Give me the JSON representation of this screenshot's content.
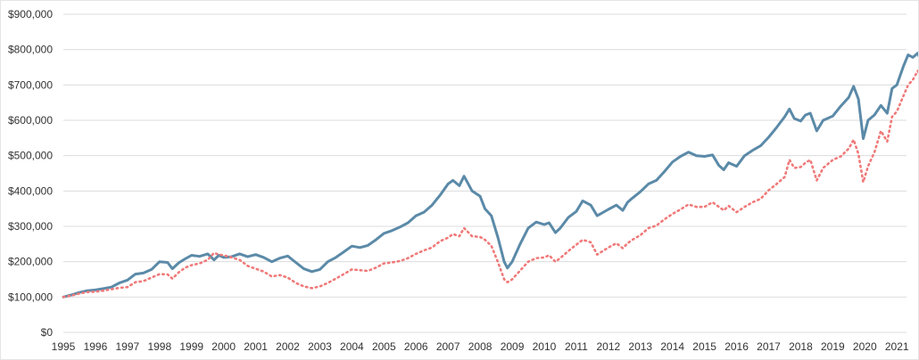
{
  "chart_data": {
    "type": "line",
    "title": "",
    "xlabel": "",
    "ylabel": "",
    "xlim": [
      1995,
      2021.3
    ],
    "ylim": [
      0,
      900000
    ],
    "grid": true,
    "legend": "none",
    "x_ticks": [
      1995,
      1996,
      1997,
      1998,
      1999,
      2000,
      2001,
      2002,
      2003,
      2004,
      2005,
      2006,
      2007,
      2008,
      2009,
      2010,
      2011,
      2012,
      2013,
      2014,
      2015,
      2016,
      2017,
      2018,
      2019,
      2020,
      2021
    ],
    "x_tick_labels": [
      "1995",
      "1996",
      "1997",
      "1998",
      "1999",
      "2000",
      "2001",
      "2002",
      "2003",
      "2004",
      "2005",
      "2006",
      "2007",
      "2008",
      "2009",
      "2010",
      "2011",
      "2012",
      "2013",
      "2014",
      "2015",
      "2016",
      "2017",
      "2018",
      "2019",
      "2020",
      "2021"
    ],
    "y_ticks": [
      0,
      100000,
      200000,
      300000,
      400000,
      500000,
      600000,
      700000,
      800000,
      900000
    ],
    "y_tick_labels": [
      "$0",
      "$100,000",
      "$200,000",
      "$300,000",
      "$400,000",
      "$500,000",
      "$600,000",
      "$700,000",
      "$800,000",
      "$900,000"
    ],
    "series": [
      {
        "color": "#5b8aa8",
        "style": "solid",
        "points": [
          [
            1995.0,
            100000
          ],
          [
            1995.25,
            106000
          ],
          [
            1995.5,
            113000
          ],
          [
            1995.75,
            118000
          ],
          [
            1996.0,
            120000
          ],
          [
            1996.25,
            124000
          ],
          [
            1996.5,
            128000
          ],
          [
            1996.75,
            140000
          ],
          [
            1997.0,
            148000
          ],
          [
            1997.25,
            165000
          ],
          [
            1997.5,
            168000
          ],
          [
            1997.75,
            178000
          ],
          [
            1998.0,
            200000
          ],
          [
            1998.25,
            198000
          ],
          [
            1998.4,
            180000
          ],
          [
            1998.6,
            197000
          ],
          [
            1998.8,
            208000
          ],
          [
            1999.0,
            218000
          ],
          [
            1999.25,
            215000
          ],
          [
            1999.5,
            222000
          ],
          [
            1999.7,
            205000
          ],
          [
            1999.85,
            218000
          ],
          [
            2000.0,
            212000
          ],
          [
            2000.25,
            214000
          ],
          [
            2000.5,
            222000
          ],
          [
            2000.75,
            214000
          ],
          [
            2001.0,
            220000
          ],
          [
            2001.25,
            212000
          ],
          [
            2001.5,
            200000
          ],
          [
            2001.75,
            210000
          ],
          [
            2002.0,
            216000
          ],
          [
            2002.25,
            198000
          ],
          [
            2002.5,
            180000
          ],
          [
            2002.75,
            172000
          ],
          [
            2003.0,
            178000
          ],
          [
            2003.25,
            200000
          ],
          [
            2003.5,
            212000
          ],
          [
            2003.75,
            228000
          ],
          [
            2004.0,
            244000
          ],
          [
            2004.25,
            240000
          ],
          [
            2004.5,
            246000
          ],
          [
            2004.75,
            262000
          ],
          [
            2005.0,
            280000
          ],
          [
            2005.25,
            288000
          ],
          [
            2005.5,
            298000
          ],
          [
            2005.75,
            310000
          ],
          [
            2006.0,
            330000
          ],
          [
            2006.25,
            340000
          ],
          [
            2006.5,
            360000
          ],
          [
            2006.75,
            388000
          ],
          [
            2007.0,
            420000
          ],
          [
            2007.15,
            430000
          ],
          [
            2007.35,
            415000
          ],
          [
            2007.5,
            442000
          ],
          [
            2007.75,
            400000
          ],
          [
            2008.0,
            385000
          ],
          [
            2008.15,
            350000
          ],
          [
            2008.35,
            330000
          ],
          [
            2008.55,
            270000
          ],
          [
            2008.75,
            200000
          ],
          [
            2008.85,
            182000
          ],
          [
            2009.0,
            200000
          ],
          [
            2009.25,
            250000
          ],
          [
            2009.5,
            295000
          ],
          [
            2009.75,
            312000
          ],
          [
            2010.0,
            305000
          ],
          [
            2010.15,
            310000
          ],
          [
            2010.35,
            282000
          ],
          [
            2010.5,
            295000
          ],
          [
            2010.75,
            325000
          ],
          [
            2011.0,
            342000
          ],
          [
            2011.2,
            372000
          ],
          [
            2011.45,
            360000
          ],
          [
            2011.65,
            330000
          ],
          [
            2011.75,
            335000
          ],
          [
            2012.0,
            348000
          ],
          [
            2012.25,
            360000
          ],
          [
            2012.45,
            345000
          ],
          [
            2012.6,
            368000
          ],
          [
            2012.75,
            380000
          ],
          [
            2013.0,
            398000
          ],
          [
            2013.25,
            420000
          ],
          [
            2013.5,
            430000
          ],
          [
            2013.75,
            455000
          ],
          [
            2014.0,
            482000
          ],
          [
            2014.25,
            498000
          ],
          [
            2014.5,
            510000
          ],
          [
            2014.75,
            500000
          ],
          [
            2015.0,
            498000
          ],
          [
            2015.25,
            502000
          ],
          [
            2015.45,
            472000
          ],
          [
            2015.6,
            460000
          ],
          [
            2015.75,
            480000
          ],
          [
            2016.0,
            470000
          ],
          [
            2016.25,
            500000
          ],
          [
            2016.5,
            515000
          ],
          [
            2016.75,
            528000
          ],
          [
            2017.0,
            552000
          ],
          [
            2017.25,
            580000
          ],
          [
            2017.5,
            610000
          ],
          [
            2017.65,
            632000
          ],
          [
            2017.8,
            605000
          ],
          [
            2018.0,
            598000
          ],
          [
            2018.15,
            615000
          ],
          [
            2018.3,
            620000
          ],
          [
            2018.5,
            570000
          ],
          [
            2018.7,
            600000
          ],
          [
            2019.0,
            612000
          ],
          [
            2019.25,
            640000
          ],
          [
            2019.5,
            665000
          ],
          [
            2019.65,
            696000
          ],
          [
            2019.8,
            660000
          ],
          [
            2019.95,
            548000
          ],
          [
            2020.1,
            600000
          ],
          [
            2020.3,
            615000
          ],
          [
            2020.5,
            642000
          ],
          [
            2020.7,
            620000
          ],
          [
            2020.85,
            690000
          ],
          [
            2021.0,
            700000
          ],
          [
            2021.2,
            752000
          ],
          [
            2021.35,
            785000
          ],
          [
            2021.5,
            778000
          ],
          [
            2021.65,
            790000
          ],
          [
            2021.75,
            768000
          ]
        ]
      },
      {
        "color": "#f07a7a",
        "style": "dotted",
        "points": [
          [
            1995.0,
            100000
          ],
          [
            1995.25,
            104000
          ],
          [
            1995.5,
            110000
          ],
          [
            1995.75,
            114000
          ],
          [
            1996.0,
            115000
          ],
          [
            1996.25,
            118000
          ],
          [
            1996.5,
            122000
          ],
          [
            1996.75,
            126000
          ],
          [
            1997.0,
            128000
          ],
          [
            1997.25,
            142000
          ],
          [
            1997.5,
            145000
          ],
          [
            1997.75,
            155000
          ],
          [
            1998.0,
            165000
          ],
          [
            1998.25,
            164000
          ],
          [
            1998.4,
            152000
          ],
          [
            1998.6,
            170000
          ],
          [
            1998.8,
            183000
          ],
          [
            1999.0,
            190000
          ],
          [
            1999.25,
            195000
          ],
          [
            1999.5,
            205000
          ],
          [
            1999.7,
            225000
          ],
          [
            1999.85,
            220000
          ],
          [
            2000.0,
            218000
          ],
          [
            2000.25,
            212000
          ],
          [
            2000.5,
            205000
          ],
          [
            2000.75,
            188000
          ],
          [
            2001.0,
            180000
          ],
          [
            2001.25,
            172000
          ],
          [
            2001.5,
            158000
          ],
          [
            2001.75,
            162000
          ],
          [
            2002.0,
            155000
          ],
          [
            2002.25,
            140000
          ],
          [
            2002.5,
            130000
          ],
          [
            2002.75,
            125000
          ],
          [
            2003.0,
            130000
          ],
          [
            2003.25,
            140000
          ],
          [
            2003.5,
            152000
          ],
          [
            2003.75,
            165000
          ],
          [
            2004.0,
            178000
          ],
          [
            2004.25,
            176000
          ],
          [
            2004.5,
            174000
          ],
          [
            2004.75,
            183000
          ],
          [
            2005.0,
            195000
          ],
          [
            2005.25,
            198000
          ],
          [
            2005.5,
            202000
          ],
          [
            2005.75,
            210000
          ],
          [
            2006.0,
            222000
          ],
          [
            2006.25,
            232000
          ],
          [
            2006.5,
            240000
          ],
          [
            2006.75,
            258000
          ],
          [
            2007.0,
            268000
          ],
          [
            2007.15,
            278000
          ],
          [
            2007.35,
            272000
          ],
          [
            2007.5,
            295000
          ],
          [
            2007.75,
            272000
          ],
          [
            2008.0,
            270000
          ],
          [
            2008.15,
            262000
          ],
          [
            2008.35,
            245000
          ],
          [
            2008.55,
            200000
          ],
          [
            2008.75,
            150000
          ],
          [
            2008.85,
            142000
          ],
          [
            2009.0,
            150000
          ],
          [
            2009.25,
            175000
          ],
          [
            2009.5,
            200000
          ],
          [
            2009.75,
            210000
          ],
          [
            2010.0,
            212000
          ],
          [
            2010.15,
            218000
          ],
          [
            2010.35,
            200000
          ],
          [
            2010.5,
            210000
          ],
          [
            2010.75,
            230000
          ],
          [
            2011.0,
            248000
          ],
          [
            2011.2,
            262000
          ],
          [
            2011.45,
            255000
          ],
          [
            2011.65,
            220000
          ],
          [
            2011.75,
            226000
          ],
          [
            2012.0,
            240000
          ],
          [
            2012.25,
            252000
          ],
          [
            2012.45,
            238000
          ],
          [
            2012.6,
            252000
          ],
          [
            2012.75,
            262000
          ],
          [
            2013.0,
            275000
          ],
          [
            2013.25,
            295000
          ],
          [
            2013.5,
            302000
          ],
          [
            2013.75,
            320000
          ],
          [
            2014.0,
            335000
          ],
          [
            2014.25,
            348000
          ],
          [
            2014.5,
            362000
          ],
          [
            2014.75,
            355000
          ],
          [
            2015.0,
            355000
          ],
          [
            2015.25,
            368000
          ],
          [
            2015.45,
            355000
          ],
          [
            2015.6,
            345000
          ],
          [
            2015.75,
            358000
          ],
          [
            2016.0,
            340000
          ],
          [
            2016.25,
            355000
          ],
          [
            2016.5,
            368000
          ],
          [
            2016.75,
            378000
          ],
          [
            2017.0,
            402000
          ],
          [
            2017.25,
            420000
          ],
          [
            2017.5,
            440000
          ],
          [
            2017.65,
            488000
          ],
          [
            2017.8,
            465000
          ],
          [
            2018.0,
            468000
          ],
          [
            2018.15,
            480000
          ],
          [
            2018.3,
            488000
          ],
          [
            2018.5,
            430000
          ],
          [
            2018.7,
            465000
          ],
          [
            2019.0,
            488000
          ],
          [
            2019.25,
            498000
          ],
          [
            2019.5,
            520000
          ],
          [
            2019.65,
            545000
          ],
          [
            2019.8,
            505000
          ],
          [
            2019.95,
            425000
          ],
          [
            2020.1,
            470000
          ],
          [
            2020.3,
            510000
          ],
          [
            2020.5,
            570000
          ],
          [
            2020.7,
            540000
          ],
          [
            2020.85,
            610000
          ],
          [
            2021.0,
            625000
          ],
          [
            2021.2,
            668000
          ],
          [
            2021.35,
            700000
          ],
          [
            2021.5,
            715000
          ],
          [
            2021.65,
            740000
          ],
          [
            2021.75,
            722000
          ]
        ]
      }
    ]
  }
}
